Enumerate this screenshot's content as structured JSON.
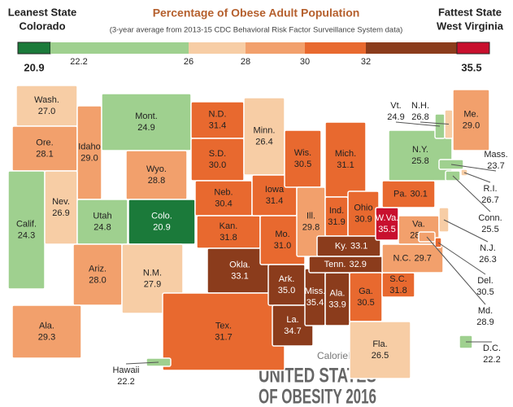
{
  "header": {
    "leanest_label": "Leanest State",
    "leanest_state": "Colorado",
    "title": "Percentage of Obese Adult Population",
    "subtitle": "(3-year average from 2013-15 CDC Behavioral Risk Factor Surveillance System data)",
    "fattest_label": "Fattest State",
    "fattest_state": "West Virginia"
  },
  "legend": {
    "ticks": [
      "20.9",
      "22.2",
      "26",
      "28",
      "30",
      "32",
      "35.5"
    ],
    "colors": [
      "#1b7a3a",
      "#9fd08f",
      "#f7cda5",
      "#f2a06c",
      "#e8692f",
      "#8b3c1c",
      "#c8102e"
    ]
  },
  "states": [
    {
      "name": "Wash.",
      "value": "27.0"
    },
    {
      "name": "Ore.",
      "value": "28.1"
    },
    {
      "name": "Calif.",
      "value": "24.3"
    },
    {
      "name": "Idaho",
      "value": "29.0"
    },
    {
      "name": "Nev.",
      "value": "26.9"
    },
    {
      "name": "Utah",
      "value": "24.8"
    },
    {
      "name": "Mont.",
      "value": "24.9"
    },
    {
      "name": "Wyo.",
      "value": "28.8"
    },
    {
      "name": "Colo.",
      "value": "20.9"
    },
    {
      "name": "Ariz.",
      "value": "28.0"
    },
    {
      "name": "N.M.",
      "value": "27.9"
    },
    {
      "name": "N.D.",
      "value": "31.4"
    },
    {
      "name": "S.D.",
      "value": "30.0"
    },
    {
      "name": "Neb.",
      "value": "30.4"
    },
    {
      "name": "Kan.",
      "value": "31.8"
    },
    {
      "name": "Okla.",
      "value": "33.1"
    },
    {
      "name": "Tex.",
      "value": "31.7"
    },
    {
      "name": "Minn.",
      "value": "26.4"
    },
    {
      "name": "Iowa",
      "value": "31.4"
    },
    {
      "name": "Mo.",
      "value": "31.0"
    },
    {
      "name": "Ark.",
      "value": "35.0"
    },
    {
      "name": "La.",
      "value": "34.7"
    },
    {
      "name": "Wis.",
      "value": "30.5"
    },
    {
      "name": "Ill.",
      "value": "29.8"
    },
    {
      "name": "Miss.",
      "value": "35.4"
    },
    {
      "name": "Ala.",
      "value": "33.9"
    },
    {
      "name": "Mich.",
      "value": "31.1"
    },
    {
      "name": "Ind.",
      "value": "31.9"
    },
    {
      "name": "Ohio",
      "value": "30.9"
    },
    {
      "name": "Ky.",
      "value": "33.1"
    },
    {
      "name": "Tenn.",
      "value": "32.9"
    },
    {
      "name": "Ga.",
      "value": "30.5"
    },
    {
      "name": "Fla.",
      "value": "26.5"
    },
    {
      "name": "S.C.",
      "value": "31.8"
    },
    {
      "name": "N.C.",
      "value": "29.7"
    },
    {
      "name": "Va.",
      "value": "28.3"
    },
    {
      "name": "W.Va.",
      "value": "35.5"
    },
    {
      "name": "Pa.",
      "value": "30.1"
    },
    {
      "name": "N.Y.",
      "value": "25.8"
    },
    {
      "name": "Vt.",
      "value": "24.9"
    },
    {
      "name": "N.H.",
      "value": "26.8"
    },
    {
      "name": "Me.",
      "value": "29.0"
    },
    {
      "name": "Mass.",
      "value": "23.7"
    },
    {
      "name": "R.I.",
      "value": "26.7"
    },
    {
      "name": "Conn.",
      "value": "25.5"
    },
    {
      "name": "N.J.",
      "value": "26.3"
    },
    {
      "name": "Del.",
      "value": "30.5"
    },
    {
      "name": "Md.",
      "value": "28.9"
    },
    {
      "name": "D.C.",
      "value": "22.2"
    },
    {
      "name": "Ala.",
      "value": "29.3"
    },
    {
      "name": "Hawaii",
      "value": "22.2"
    }
  ],
  "footer": {
    "credit": "CalorieLab's",
    "line1": "UNITED STATES",
    "line2": "OF OBESITY 2016"
  }
}
